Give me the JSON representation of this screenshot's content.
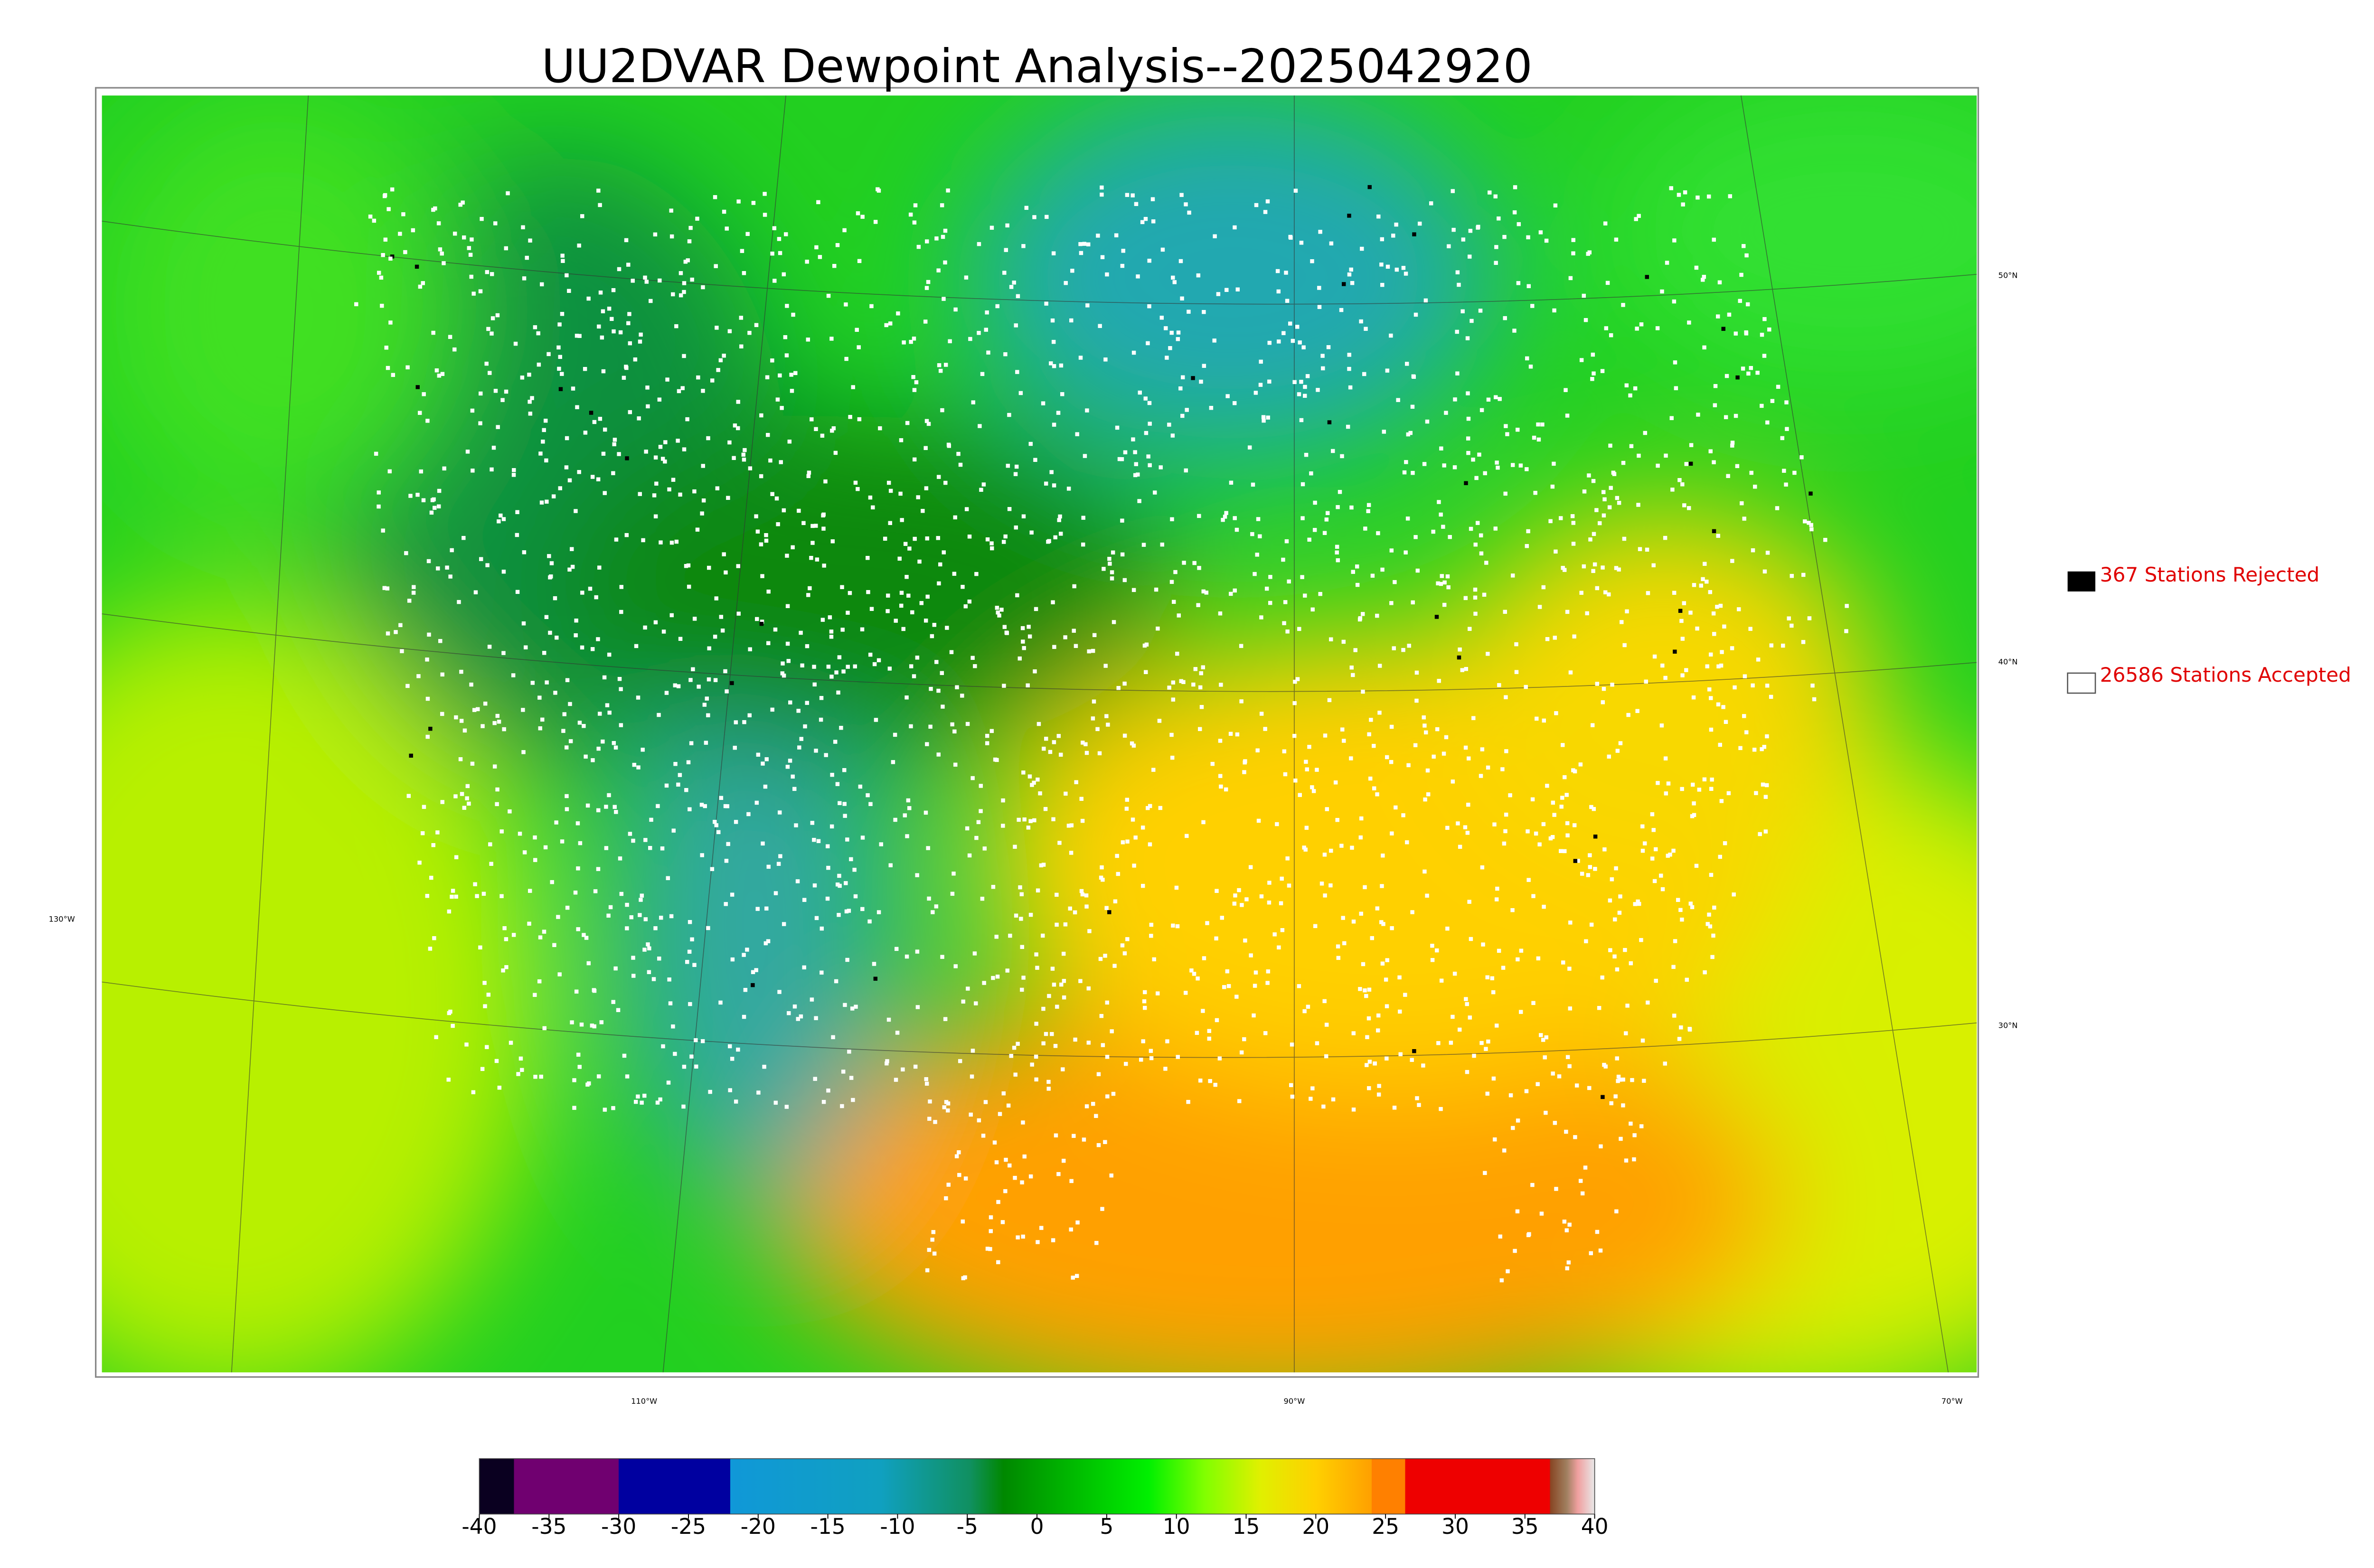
{
  "title": "UU2DVAR Dewpoint Analysis--2025042920",
  "legend": [
    {
      "label": "367 Stations Rejected"
    },
    {
      "label": "26586 Stations Accepted"
    }
  ],
  "graticule": {
    "lat_labels": [
      "50°N",
      "40°N",
      "30°N"
    ],
    "lon_labels": [
      "130°W",
      "110°W",
      "90°W",
      "70°W"
    ]
  },
  "colorbar": {
    "lim": [
      -40,
      40
    ],
    "ticks": [
      -40,
      -35,
      -30,
      -25,
      -20,
      -15,
      -10,
      -5,
      0,
      5,
      10,
      15,
      20,
      25,
      30,
      35,
      40
    ]
  }
}
